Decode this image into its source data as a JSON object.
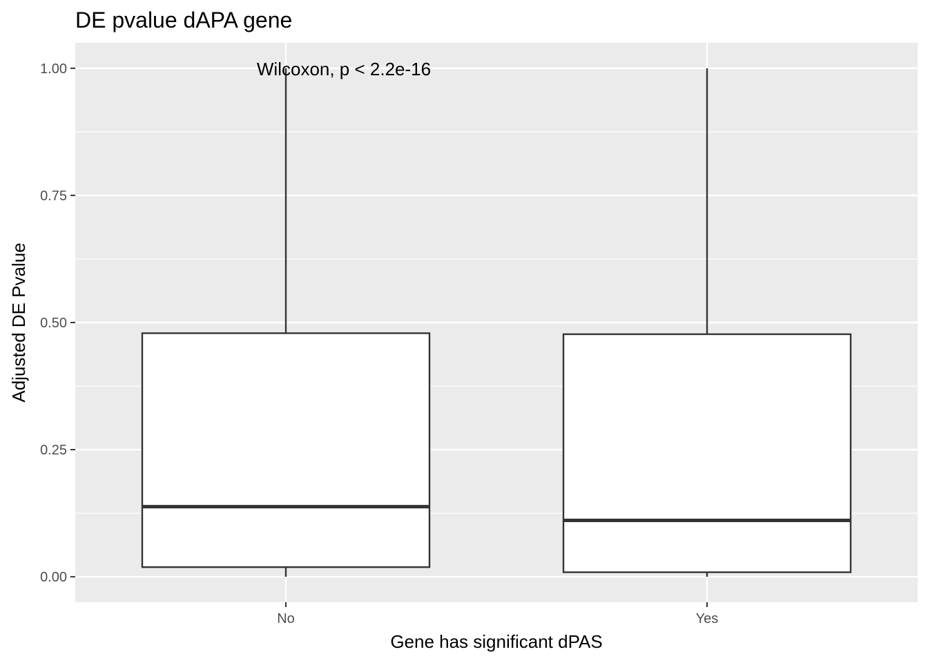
{
  "chart_data": {
    "type": "boxplot",
    "title": "DE pvalue dAPA gene",
    "xlabel": "Gene has significant dPAS",
    "ylabel": "Adjusted DE Pvalue",
    "ylim": [
      -0.05,
      1.05
    ],
    "yticks": [
      0.0,
      0.25,
      0.5,
      0.75,
      1.0
    ],
    "ytick_labels": [
      "0.00",
      "0.25",
      "0.50",
      "0.75",
      "1.00"
    ],
    "categories": [
      "No",
      "Yes"
    ],
    "boxes": [
      {
        "category": "No",
        "whisker_low": 0.0,
        "q1": 0.019,
        "median": 0.138,
        "q3": 0.479,
        "whisker_high": 1.0
      },
      {
        "category": "Yes",
        "whisker_low": 0.0,
        "q1": 0.009,
        "median": 0.111,
        "q3": 0.477,
        "whisker_high": 1.0
      }
    ],
    "annotation": {
      "text": "Wilcoxon, p < 2.2e-16",
      "x_category": "No",
      "y": 1.0
    },
    "grid": true,
    "legend": "none"
  }
}
